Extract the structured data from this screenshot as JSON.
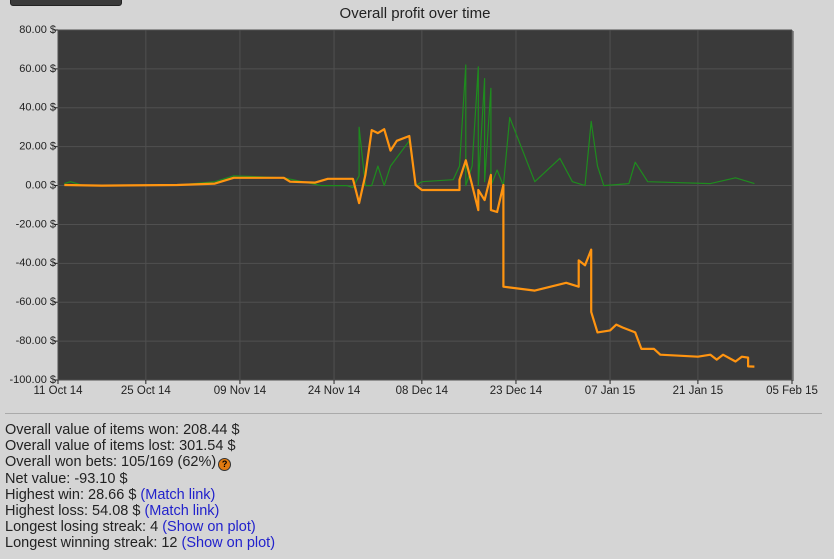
{
  "chart_data": {
    "type": "line",
    "title": "Overall profit over time",
    "xlim": [
      "2014-10-11",
      "2015-02-05"
    ],
    "xticks": [
      {
        "value": "2014-10-11",
        "label": "11 Oct 14"
      },
      {
        "value": "2014-10-25",
        "label": "25 Oct 14"
      },
      {
        "value": "2014-11-09",
        "label": "09 Nov 14"
      },
      {
        "value": "2014-11-24",
        "label": "24 Nov 14"
      },
      {
        "value": "2014-12-08",
        "label": "08 Dec 14"
      },
      {
        "value": "2014-12-23",
        "label": "23 Dec 14"
      },
      {
        "value": "2015-01-07",
        "label": "07 Jan 15"
      },
      {
        "value": "2015-01-21",
        "label": "21 Jan 15"
      },
      {
        "value": "2015-02-05",
        "label": "05 Feb 15"
      }
    ],
    "ylim": [
      -100,
      80
    ],
    "yticks": [
      {
        "value": -100,
        "label": "-100.00 $"
      },
      {
        "value": -80,
        "label": "-80.00 $"
      },
      {
        "value": -60,
        "label": "-60.00 $"
      },
      {
        "value": -40,
        "label": "-40.00 $"
      },
      {
        "value": -20,
        "label": "-20.00 $"
      },
      {
        "value": 0,
        "label": "0.00 $"
      },
      {
        "value": 20,
        "label": "20.00 $"
      },
      {
        "value": 40,
        "label": "40.00 $"
      },
      {
        "value": 60,
        "label": "60.00 $"
      },
      {
        "value": 80,
        "label": "80.00 $"
      }
    ],
    "grid": true,
    "series": [
      {
        "color": "#1e8c1e",
        "x": [
          "2014-10-12",
          "2014-10-13",
          "2014-10-15",
          "2014-10-31",
          "2014-11-05",
          "2014-11-08",
          "2014-11-16",
          "2014-11-22",
          "2014-11-26",
          "2014-11-27",
          "2014-11-28",
          "2014-11-28",
          "2014-11-29",
          "2014-11-30",
          "2014-12-01",
          "2014-12-02",
          "2014-12-03",
          "2014-12-06",
          "2014-12-07",
          "2014-12-08",
          "2014-12-13",
          "2014-12-14",
          "2014-12-15",
          "2014-12-15",
          "2014-12-16",
          "2014-12-17",
          "2014-12-17",
          "2014-12-18",
          "2014-12-18",
          "2014-12-19",
          "2014-12-19",
          "2014-12-20",
          "2014-12-21",
          "2014-12-22",
          "2014-12-26",
          "2014-12-30",
          "2015-01-01",
          "2015-01-03",
          "2015-01-04",
          "2015-01-05",
          "2015-01-06",
          "2015-01-10",
          "2015-01-11",
          "2015-01-13",
          "2015-01-23",
          "2015-01-27",
          "2015-01-30"
        ],
        "values": [
          1,
          2,
          0,
          0.5,
          2,
          5,
          4,
          0,
          0,
          -1,
          5,
          30,
          0,
          0,
          10,
          0,
          10,
          23,
          0,
          2,
          3,
          10,
          62,
          0,
          10,
          61,
          0,
          55,
          2,
          50,
          0,
          8,
          0,
          35,
          2,
          14,
          2,
          0,
          33,
          10,
          0,
          1,
          12,
          2,
          1,
          4,
          1
        ]
      },
      {
        "color": "#ff9410",
        "x": [
          "2014-10-12",
          "2014-10-18",
          "2014-10-30",
          "2014-11-05",
          "2014-11-08",
          "2014-11-16",
          "2014-11-17",
          "2014-11-21",
          "2014-11-23",
          "2014-11-27",
          "2014-11-28",
          "2014-11-29",
          "2014-11-30",
          "2014-12-01",
          "2014-12-02",
          "2014-12-03",
          "2014-12-04",
          "2014-12-06",
          "2014-12-07",
          "2014-12-08",
          "2014-12-14",
          "2014-12-14",
          "2014-12-15",
          "2014-12-16",
          "2014-12-17",
          "2014-12-17",
          "2014-12-18",
          "2014-12-19",
          "2014-12-19",
          "2014-12-20",
          "2014-12-21",
          "2014-12-21",
          "2014-12-21",
          "2014-12-26",
          "2014-12-31",
          "2015-01-02",
          "2015-01-02",
          "2015-01-03",
          "2015-01-04",
          "2015-01-04",
          "2015-01-05",
          "2015-01-07",
          "2015-01-08",
          "2015-01-09",
          "2015-01-11",
          "2015-01-12",
          "2015-01-14",
          "2015-01-15",
          "2015-01-21",
          "2015-01-23",
          "2015-01-24",
          "2015-01-25",
          "2015-01-27",
          "2015-01-28",
          "2015-01-29",
          "2015-01-29",
          "2015-01-30"
        ],
        "values": [
          0.3,
          0,
          0.3,
          1,
          4,
          4,
          2,
          1.5,
          3.5,
          3.5,
          -9,
          5.5,
          28.5,
          27,
          29,
          18,
          23,
          25.5,
          0.3,
          -2.3,
          -2.3,
          3,
          13,
          0.3,
          -12.6,
          -2.3,
          -7.5,
          5.5,
          -12.6,
          -13.6,
          0.3,
          -15,
          -52,
          -54,
          -50,
          -52,
          -38.5,
          -41,
          -33,
          -65,
          -75.5,
          -74.5,
          -71.5,
          -73,
          -75.5,
          -84,
          -84,
          -87,
          -88,
          -87,
          -89.5,
          -87,
          -90.5,
          -88,
          -88.5,
          -93,
          -93.1
        ]
      }
    ]
  },
  "stats": [
    {
      "text": "Overall value of items won: 208.44 $"
    },
    {
      "text": "Overall value of items lost: 301.54 $"
    },
    {
      "text": "Overall won bets: 105/169 (62%)",
      "icon": "?"
    },
    {
      "text": "Net value: -93.10 $"
    },
    {
      "text": "Highest win: 28.66 $",
      "link": "(Match link)"
    },
    {
      "text": "Highest loss: 54.08 $",
      "link": "(Match link)"
    },
    {
      "text": "Longest losing streak: 4",
      "link": "(Show on plot)"
    },
    {
      "text": "Longest winning streak: 12",
      "link": "(Show on plot)"
    }
  ]
}
